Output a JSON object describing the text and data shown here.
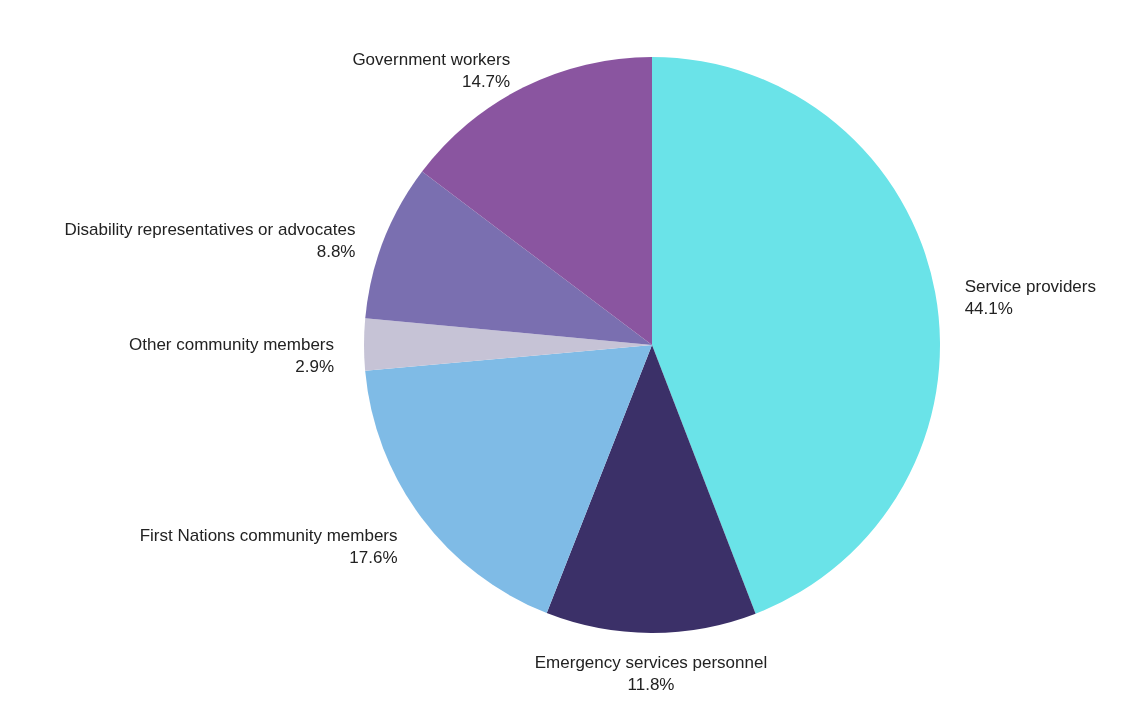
{
  "chart_data": {
    "type": "pie",
    "categories": [
      "Service providers",
      "Emergency services personnel",
      "First Nations community members",
      "Other community members",
      "Disability representatives or advocates",
      "Government workers"
    ],
    "values": [
      44.1,
      11.8,
      17.6,
      2.9,
      8.8,
      14.7
    ],
    "value_labels": [
      "44.1%",
      "11.8%",
      "17.6%",
      "2.9%",
      "8.8%",
      "14.7%"
    ],
    "colors": [
      "#6ae3e8",
      "#3b3068",
      "#7fbbe6",
      "#c6c3d6",
      "#7a6fb0",
      "#8a55a0"
    ]
  }
}
